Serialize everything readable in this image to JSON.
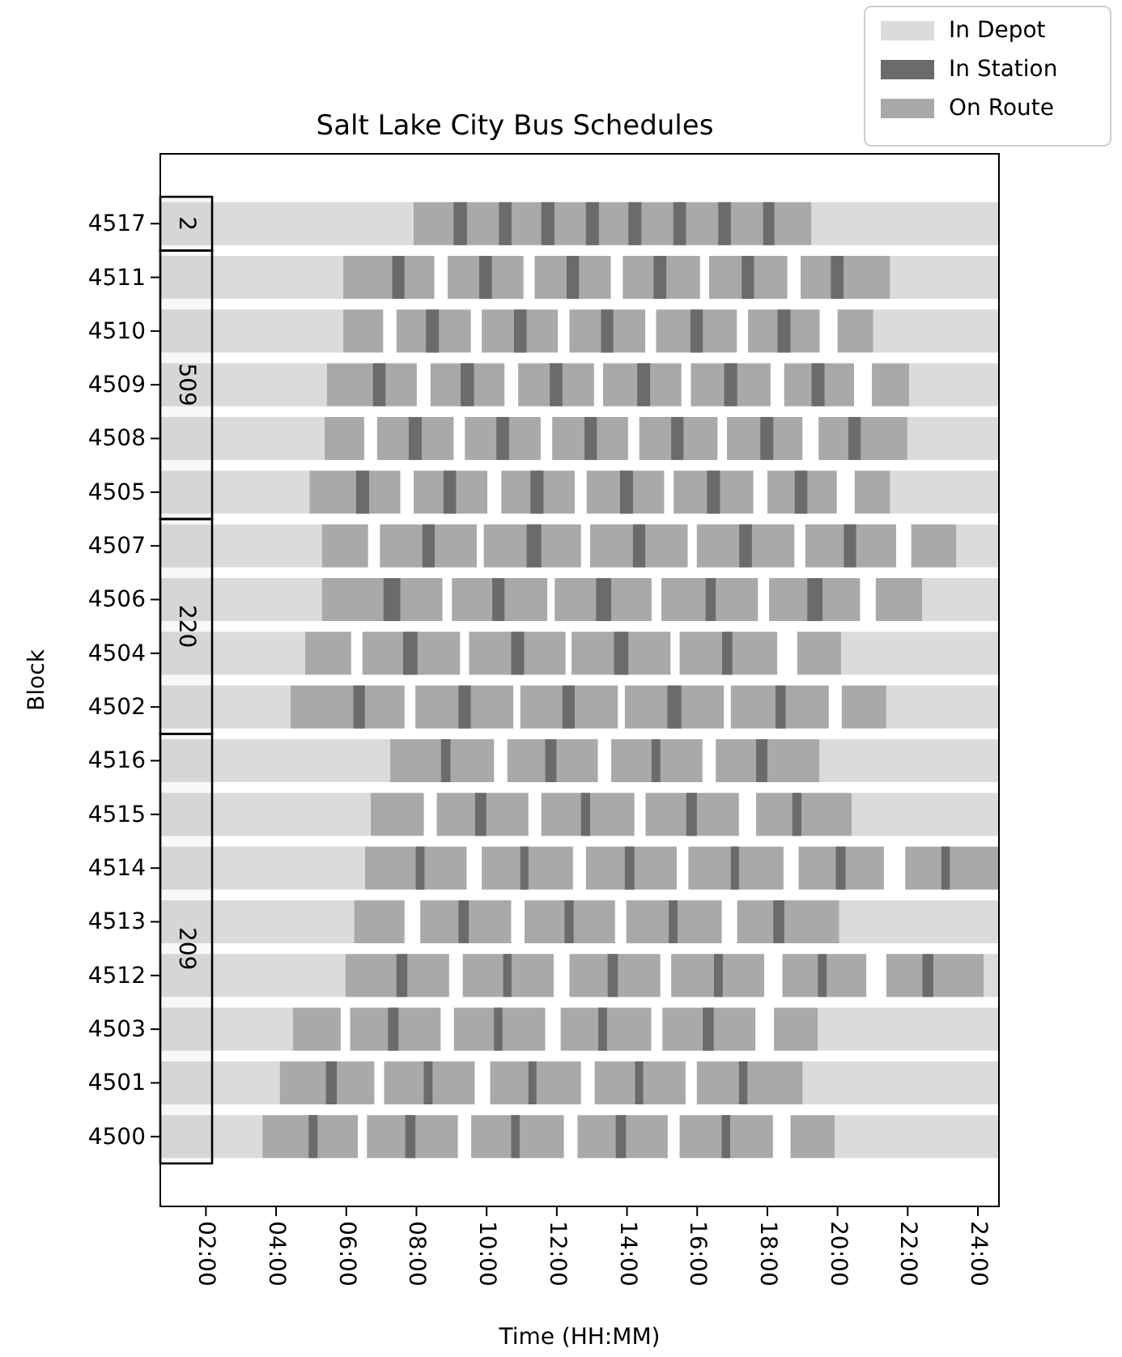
{
  "chart_data": {
    "type": "bar",
    "orientation": "horizontal",
    "title": "Salt Lake City Bus Schedules",
    "xlabel": "Time (HH:MM)",
    "ylabel": "Block",
    "categories": [
      "4517",
      "4511",
      "4510",
      "4509",
      "4508",
      "4505",
      "4507",
      "4506",
      "4504",
      "4502",
      "4516",
      "4515",
      "4514",
      "4513",
      "4512",
      "4503",
      "4501",
      "4500"
    ],
    "xlim": [
      0.7,
      24.6
    ],
    "xticks": [
      {
        "value": 2,
        "label": "02:00"
      },
      {
        "value": 4,
        "label": "04:00"
      },
      {
        "value": 6,
        "label": "06:00"
      },
      {
        "value": 8,
        "label": "08:00"
      },
      {
        "value": 10,
        "label": "10:00"
      },
      {
        "value": 12,
        "label": "12:00"
      },
      {
        "value": 14,
        "label": "14:00"
      },
      {
        "value": 16,
        "label": "16:00"
      },
      {
        "value": 18,
        "label": "18:00"
      },
      {
        "value": 20,
        "label": "20:00"
      },
      {
        "value": 22,
        "label": "22:00"
      },
      {
        "value": 24,
        "label": "24:00"
      }
    ],
    "legend": "top right",
    "bands": [
      {
        "axis": "y",
        "from": "4517",
        "to": "4517",
        "label": "2"
      },
      {
        "axis": "y",
        "from": "4511",
        "to": "4505",
        "label": "509"
      },
      {
        "axis": "y",
        "from": "4507",
        "to": "4502",
        "label": "220"
      },
      {
        "axis": "y",
        "from": "4516",
        "to": "4500",
        "label": "209"
      }
    ],
    "series": [
      {
        "name": "In Depot",
        "color": "#dbdbdb",
        "base": [
          0.7,
          0.7,
          0.7,
          0.7,
          0.7,
          0.7,
          0.7,
          0.7,
          0.7,
          0.7,
          0.7,
          0.7,
          0.7,
          0.7,
          0.7,
          0.7,
          0.7,
          0.7
        ],
        "values": [
          7.21,
          5.21,
          5.21,
          4.74,
          4.68,
          4.25,
          4.6,
          4.6,
          4.12,
          3.71,
          6.55,
          5.99,
          5.83,
          5.52,
          5.27,
          3.77,
          3.4,
          2.91
        ]
      },
      {
        "color": "#dbdbdb",
        "base": [
          19.26,
          21.5,
          21.02,
          22.05,
          21.99,
          21.5,
          23.39,
          22.41,
          20.1,
          21.39,
          19.49,
          20.41,
          null,
          20.05,
          24.17,
          19.44,
          19.01,
          19.92
        ],
        "values": [
          5.34,
          3.1,
          3.58,
          2.55,
          2.61,
          3.1,
          1.21,
          2.19,
          4.5,
          3.21,
          5.11,
          4.19,
          null,
          4.55,
          0.43,
          5.16,
          5.59,
          4.68
        ]
      },
      {
        "name": "In Station",
        "color": "#6b6b6b",
        "base": [
          9.06,
          7.31,
          8.27,
          6.76,
          7.78,
          6.28,
          8.17,
          7.06,
          7.62,
          6.2,
          8.7,
          9.67,
          7.98,
          9.2,
          7.43,
          7.19,
          5.42,
          4.93
        ],
        "values": [
          0.38,
          0.35,
          0.37,
          0.36,
          0.37,
          0.37,
          0.35,
          0.48,
          0.41,
          0.33,
          0.27,
          0.32,
          0.25,
          0.29,
          0.31,
          0.3,
          0.31,
          0.25
        ]
      },
      {
        "color": "#6b6b6b",
        "base": [
          10.35,
          9.79,
          10.78,
          9.26,
          10.28,
          8.77,
          11.14,
          10.16,
          10.7,
          9.2,
          11.67,
          12.69,
          10.96,
          12.22,
          10.47,
          10.21,
          8.21,
          7.68
        ],
        "values": [
          0.36,
          0.36,
          0.36,
          0.38,
          0.36,
          0.36,
          0.42,
          0.35,
          0.37,
          0.35,
          0.32,
          0.26,
          0.23,
          0.26,
          0.24,
          0.24,
          0.25,
          0.29
        ]
      },
      {
        "color": "#6b6b6b",
        "base": [
          11.56,
          12.28,
          13.26,
          11.8,
          12.79,
          11.25,
          14.17,
          13.12,
          13.63,
          12.16,
          14.7,
          15.69,
          13.94,
          15.19,
          13.45,
          13.18,
          11.19,
          10.7
        ],
        "values": [
          0.37,
          0.35,
          0.35,
          0.36,
          0.35,
          0.37,
          0.35,
          0.43,
          0.41,
          0.35,
          0.25,
          0.3,
          0.27,
          0.25,
          0.29,
          0.25,
          0.23,
          0.24
        ]
      },
      {
        "color": "#6b6b6b",
        "base": [
          12.83,
          14.76,
          15.81,
          14.29,
          15.26,
          13.8,
          17.2,
          16.24,
          16.71,
          15.15,
          17.68,
          18.71,
          16.96,
          18.17,
          16.48,
          16.16,
          14.23,
          13.68
        ],
        "values": [
          0.37,
          0.36,
          0.35,
          0.37,
          0.35,
          0.37,
          0.36,
          0.29,
          0.29,
          0.4,
          0.32,
          0.26,
          0.23,
          0.31,
          0.25,
          0.31,
          0.23,
          0.29
        ]
      },
      {
        "color": "#6b6b6b",
        "base": [
          14.04,
          17.27,
          18.29,
          16.77,
          17.8,
          16.28,
          20.18,
          19.14,
          null,
          18.23,
          null,
          null,
          19.95,
          null,
          19.44,
          null,
          17.19,
          16.7
        ],
        "values": [
          0.37,
          0.35,
          0.37,
          0.37,
          0.37,
          0.37,
          0.35,
          0.43,
          null,
          0.29,
          null,
          null,
          0.28,
          null,
          0.25,
          null,
          0.24,
          0.24
        ]
      },
      {
        "color": "#6b6b6b",
        "base": [
          15.32,
          19.81,
          null,
          19.26,
          20.31,
          18.78,
          null,
          null,
          null,
          null,
          null,
          null,
          22.96,
          null,
          22.42,
          null,
          null,
          null
        ],
        "values": [
          0.36,
          0.36,
          null,
          0.37,
          0.35,
          0.36,
          null,
          null,
          null,
          null,
          null,
          null,
          0.24,
          null,
          0.31,
          null,
          null,
          null
        ]
      },
      {
        "color": "#6b6b6b",
        "base": [
          16.6,
          null,
          null,
          null,
          null,
          null,
          null,
          null,
          null,
          null,
          null,
          null,
          null,
          null,
          null,
          null,
          null,
          null
        ],
        "values": [
          0.36,
          null,
          null,
          null,
          null,
          null,
          null,
          null,
          null,
          null,
          null,
          null,
          null,
          null,
          null,
          null,
          null,
          null
        ]
      },
      {
        "color": "#6b6b6b",
        "base": [
          17.88,
          null,
          null,
          null,
          null,
          null,
          null,
          null,
          null,
          null,
          null,
          null,
          null,
          null,
          null,
          null,
          null,
          null
        ],
        "values": [
          0.32,
          null,
          null,
          null,
          null,
          null,
          null,
          null,
          null,
          null,
          null,
          null,
          null,
          null,
          null,
          null,
          null,
          null
        ]
      },
      {
        "name": "On Route",
        "color": "#a9a9a9",
        "base": [
          7.91,
          5.91,
          5.91,
          5.44,
          5.38,
          4.95,
          5.3,
          5.3,
          4.82,
          4.41,
          7.25,
          6.69,
          6.53,
          6.22,
          5.97,
          4.47,
          4.1,
          3.61
        ],
        "values": [
          11.35,
          2.6,
          1.14,
          2.57,
          1.13,
          2.59,
          1.32,
          3.44,
          1.32,
          3.25,
          2.96,
          1.52,
          2.9,
          1.44,
          2.96,
          1.37,
          2.7,
          2.72
        ]
      },
      {
        "color": "#a9a9a9",
        "base": [
          null,
          8.89,
          7.43,
          8.4,
          6.88,
          7.92,
          6.96,
          9.01,
          6.46,
          7.97,
          10.59,
          8.58,
          9.86,
          8.11,
          9.32,
          6.11,
          7.08,
          6.59
        ],
        "values": [
          null,
          2.16,
          2.12,
          2.11,
          2.18,
          2.1,
          2.76,
          2.72,
          2.78,
          2.79,
          2.58,
          2.61,
          2.6,
          2.59,
          2.59,
          2.58,
          2.58,
          2.59
        ]
      },
      {
        "color": "#a9a9a9",
        "base": [
          null,
          11.37,
          9.86,
          10.9,
          9.38,
          10.42,
          9.92,
          11.94,
          9.5,
          10.96,
          13.55,
          11.56,
          12.83,
          11.08,
          12.36,
          9.07,
          10.1,
          9.56
        ],
        "values": [
          null,
          2.17,
          2.17,
          2.16,
          2.16,
          2.09,
          2.77,
          2.76,
          2.75,
          2.78,
          2.6,
          2.65,
          2.59,
          2.58,
          2.59,
          2.6,
          2.59,
          2.64
        ]
      },
      {
        "color": "#a9a9a9",
        "base": [
          null,
          13.88,
          12.36,
          13.32,
          11.87,
          12.85,
          12.95,
          14.98,
          12.42,
          13.94,
          16.53,
          14.53,
          15.75,
          13.98,
          15.26,
          12.11,
          13.08,
          12.59
        ],
        "values": [
          null,
          2.2,
          2.16,
          2.23,
          2.16,
          2.21,
          2.78,
          2.75,
          2.82,
          2.82,
          2.96,
          2.66,
          2.71,
          2.72,
          2.65,
          2.58,
          2.59,
          2.57
        ]
      },
      {
        "color": "#a9a9a9",
        "base": [
          null,
          16.34,
          14.83,
          15.82,
          14.35,
          15.33,
          15.99,
          18.05,
          15.5,
          16.96,
          null,
          17.68,
          18.89,
          17.14,
          18.43,
          15.01,
          15.99,
          15.5
        ],
        "values": [
          null,
          2.23,
          2.3,
          2.27,
          2.23,
          2.27,
          2.78,
          2.59,
          2.78,
          2.79,
          null,
          2.73,
          2.43,
          2.91,
          2.39,
          2.65,
          3.02,
          2.66
        ]
      },
      {
        "color": "#a9a9a9",
        "base": [
          null,
          18.95,
          17.45,
          18.48,
          16.85,
          18.0,
          19.08,
          21.09,
          18.85,
          20.12,
          null,
          null,
          21.93,
          null,
          21.39,
          18.19,
          null,
          18.66
        ],
        "values": [
          null,
          2.55,
          2.04,
          1.99,
          2.15,
          1.98,
          2.59,
          1.32,
          1.25,
          1.27,
          null,
          null,
          2.67,
          null,
          2.78,
          1.25,
          null,
          1.26
        ]
      },
      {
        "color": "#a9a9a9",
        "base": [
          null,
          null,
          20.0,
          20.98,
          19.46,
          20.49,
          22.1,
          null,
          null,
          null,
          null,
          null,
          null,
          null,
          null,
          null,
          null,
          null
        ],
        "values": [
          null,
          null,
          1.02,
          1.07,
          2.53,
          1.01,
          1.29,
          null,
          null,
          null,
          null,
          null,
          null,
          null,
          null,
          null,
          null,
          null
        ]
      }
    ]
  }
}
